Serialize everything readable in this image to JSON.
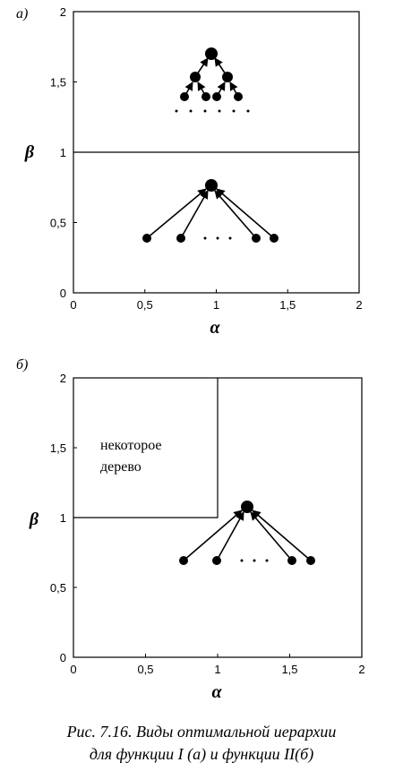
{
  "panels": [
    {
      "label": "а)",
      "xlabel": "α",
      "ylabel": "β",
      "xlim": [
        0,
        2
      ],
      "ylim": [
        0,
        2
      ],
      "xticks": [
        0,
        {
          "value": 0.5,
          "label": "0,5"
        },
        1,
        {
          "value": 1.5,
          "label": "1,5"
        },
        2
      ],
      "yticks": [
        0,
        {
          "value": 0.5,
          "label": "0,5"
        },
        1,
        {
          "value": 1.5,
          "label": "1,5"
        },
        2
      ]
    },
    {
      "label": "б)",
      "xlabel": "α",
      "ylabel": "β",
      "xlim": [
        0,
        2
      ],
      "ylim": [
        0,
        2
      ],
      "xticks": [
        0,
        {
          "value": 0.5,
          "label": "0,5"
        },
        1,
        {
          "value": 1.5,
          "label": "1,5"
        },
        2
      ],
      "yticks": [
        0,
        {
          "value": 0.5,
          "label": "0,5"
        },
        1,
        {
          "value": 1.5,
          "label": "1,5"
        },
        2
      ],
      "annotation": [
        "некоторое",
        "дерево"
      ]
    }
  ],
  "caption": [
    "Рис. 7.16. Виды оптимальной иерархии",
    "для функции I (а) и функции II(б)"
  ]
}
